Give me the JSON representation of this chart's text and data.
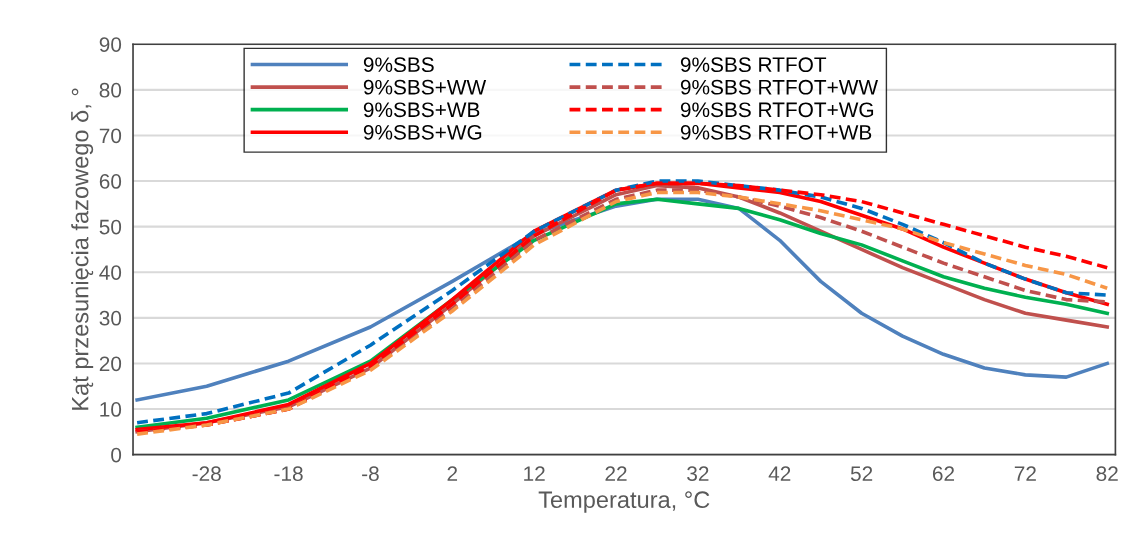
{
  "chart_data": {
    "type": "line",
    "xlabel": "Temperatura, °C",
    "ylabel": "Kąt przesunięcia fazowego δ, °",
    "x": [
      -36.5,
      -28,
      -18,
      -8,
      2,
      12,
      22,
      27,
      32,
      37,
      42,
      47,
      52,
      57,
      62,
      67,
      72,
      77,
      82
    ],
    "xlim": [
      -37,
      83
    ],
    "xticks": [
      -28,
      -18,
      -8,
      2,
      12,
      22,
      32,
      42,
      52,
      62,
      72,
      82
    ],
    "ylim": [
      0,
      90
    ],
    "yticks": [
      0,
      10,
      20,
      30,
      40,
      50,
      60,
      70,
      80,
      90
    ],
    "grid": "y",
    "legend": "top",
    "marker": "none",
    "series": [
      {
        "name": "9%SBS",
        "color": "#4f81bd",
        "line_style": "solid",
        "values": [
          12,
          15,
          20.5,
          28,
          38,
          48.5,
          54.5,
          56,
          56,
          54,
          47,
          38,
          31,
          26,
          22,
          19,
          17.5,
          17,
          20
        ]
      },
      {
        "name": "9%SBS+WW",
        "color": "#c0504d",
        "line_style": "solid",
        "values": [
          5,
          7,
          10.5,
          19,
          33,
          48,
          57,
          59,
          58.5,
          56.5,
          53,
          49,
          45,
          41,
          37.5,
          34,
          31,
          29.5,
          28
        ]
      },
      {
        "name": "9%SBS+WB",
        "color": "#00b050",
        "line_style": "solid",
        "values": [
          6,
          8,
          12,
          20.5,
          34,
          47,
          55,
          56,
          55,
          54,
          51.5,
          48.5,
          46,
          42.5,
          39,
          36.5,
          34.5,
          33,
          31
        ]
      },
      {
        "name": "9%SBS+WG",
        "color": "#ff0000",
        "line_style": "solid",
        "values": [
          5.5,
          7,
          11,
          20,
          34,
          49,
          58,
          59.5,
          59.5,
          58.5,
          57.5,
          55.5,
          52.5,
          49.5,
          45.5,
          42,
          38.5,
          35.5,
          33
        ]
      },
      {
        "name": "9%SBS RTFOT",
        "color": "#0070c0",
        "line_style": "dashed",
        "values": [
          7,
          9,
          13.5,
          24,
          36,
          49,
          58,
          60,
          60,
          59,
          58,
          56.5,
          54,
          50.5,
          46.5,
          42,
          38.5,
          35.5,
          35
        ]
      },
      {
        "name": "9%SBS RTFOT+WW",
        "color": "#c0504d",
        "line_style": "dashed",
        "values": [
          5,
          6.5,
          10,
          19,
          32,
          47,
          56,
          58,
          58,
          56.5,
          54.5,
          52,
          49,
          45.5,
          42,
          39,
          36,
          34,
          33.5
        ]
      },
      {
        "name": "9%SBS RTFOT+WG",
        "color": "#ff0000",
        "line_style": "dashed",
        "values": [
          5,
          6.5,
          10,
          19.5,
          33,
          48,
          58,
          59.5,
          59.5,
          59,
          58,
          57,
          55.5,
          53,
          50.5,
          48,
          45.5,
          43.5,
          41
        ]
      },
      {
        "name": "9%SBS RTFOT+WB",
        "color": "#f79646",
        "line_style": "dashed",
        "values": [
          4.5,
          6.5,
          10,
          18.5,
          31.5,
          46,
          55.5,
          57.5,
          57.5,
          56.5,
          55,
          53.5,
          51.5,
          49.5,
          46.5,
          44,
          41.5,
          39.5,
          36.5
        ]
      }
    ]
  }
}
